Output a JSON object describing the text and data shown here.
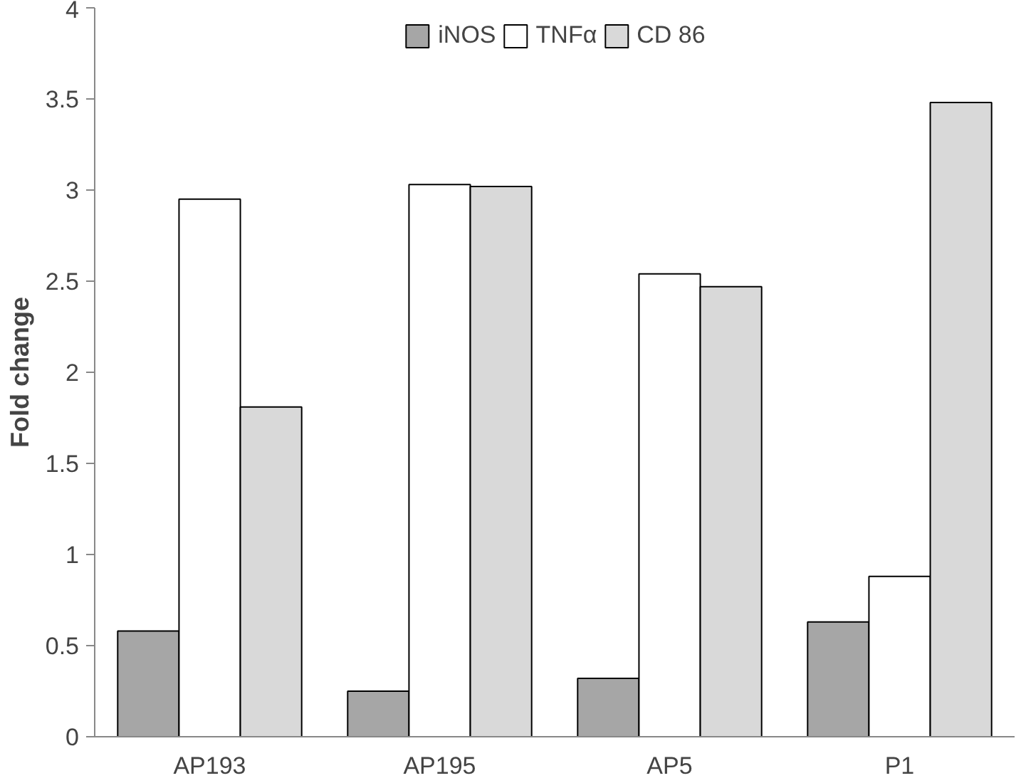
{
  "chart_data": {
    "type": "bar",
    "ylabel": "Fold change",
    "categories": [
      "AP193",
      "AP195",
      "AP5",
      "P1"
    ],
    "series": [
      {
        "name": "iNOS",
        "color": "#a6a6a6",
        "values": [
          0.58,
          0.25,
          0.32,
          0.63
        ]
      },
      {
        "name": "TNFα",
        "color": "#ffffff",
        "values": [
          2.95,
          3.03,
          2.54,
          0.88
        ]
      },
      {
        "name": "CD 86",
        "color": "#d9d9d9",
        "values": [
          1.81,
          3.02,
          2.47,
          3.48
        ]
      }
    ],
    "ylim": [
      0,
      4
    ],
    "yticks": [
      0,
      0.5,
      1,
      1.5,
      2,
      2.5,
      3,
      3.5,
      4
    ],
    "grid": false,
    "legend": "top"
  }
}
